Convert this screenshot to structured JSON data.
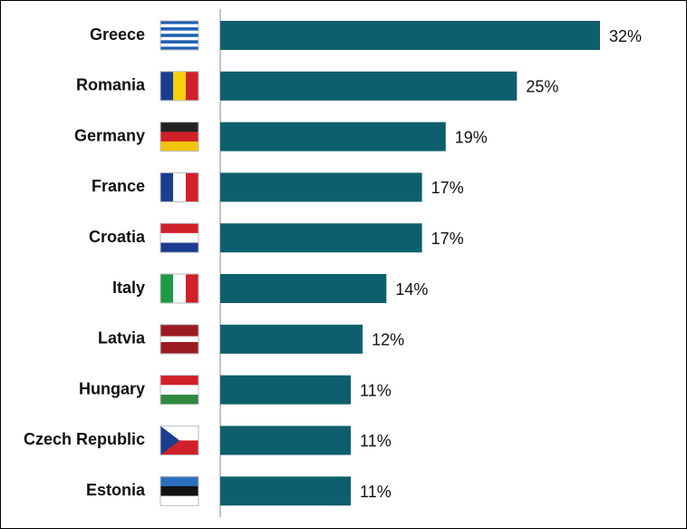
{
  "chart_data": {
    "type": "bar",
    "orientation": "horizontal",
    "categories": [
      "Greece",
      "Romania",
      "Germany",
      "France",
      "Croatia",
      "Italy",
      "Latvia",
      "Hungary",
      "Czech Republic",
      "Estonia"
    ],
    "values": [
      32,
      25,
      19,
      17,
      17,
      14,
      12,
      11,
      11,
      11
    ],
    "value_labels": [
      "32%",
      "25%",
      "19%",
      "17%",
      "17%",
      "14%",
      "12%",
      "11%",
      "11%",
      "11%"
    ],
    "color": "#0e5f6e"
  }
}
